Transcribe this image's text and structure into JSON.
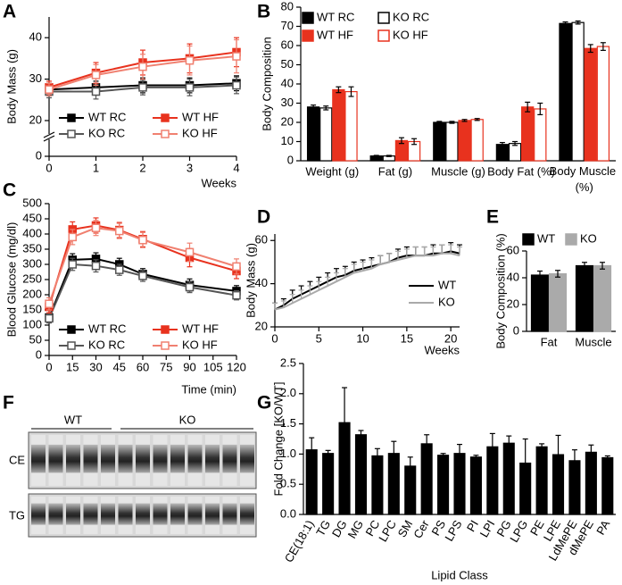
{
  "chart_data": [
    {
      "type": "line",
      "panel": "A",
      "ylabel": "Body Mass (g)",
      "xlabel": "Weeks",
      "x": [
        0,
        1,
        2,
        3,
        4
      ],
      "xlim": [
        0,
        4
      ],
      "xticks": [
        0,
        1,
        2,
        3,
        4
      ],
      "ylim": [
        0,
        45
      ],
      "yticks": [
        0,
        20,
        30,
        40
      ],
      "y_break": [
        0,
        20
      ],
      "series": [
        {
          "name": "WT RC",
          "color": "#000000",
          "marker": "filled",
          "values": [
            27.5,
            28,
            28.5,
            28.5,
            29
          ],
          "errors": [
            1.5,
            1.5,
            1.8,
            1.8,
            1.8
          ]
        },
        {
          "name": "KO RC",
          "color": "#555555",
          "marker": "open",
          "values": [
            27,
            27,
            28,
            28,
            28.5
          ],
          "errors": [
            1.5,
            1.8,
            1.8,
            2,
            2
          ]
        },
        {
          "name": "WT HF",
          "color": "#e8321e",
          "marker": "filled",
          "values": [
            28,
            31.5,
            34,
            35,
            36.5
          ],
          "errors": [
            1.5,
            2.5,
            3,
            3.5,
            3.5
          ]
        },
        {
          "name": "KO HF",
          "color": "#f08070",
          "marker": "open",
          "values": [
            27.5,
            31,
            33,
            34.5,
            35.5
          ],
          "errors": [
            1.5,
            2.5,
            3,
            3.5,
            4
          ]
        }
      ]
    },
    {
      "type": "bar",
      "panel": "B",
      "ylabel": "Body Composition",
      "categories": [
        "Weight (g)",
        "Fat (g)",
        "Muscle (g)",
        "Body Fat (%)",
        "Body Muscle (%)"
      ],
      "ylim": [
        0,
        80
      ],
      "yticks": [
        0,
        10,
        20,
        30,
        40,
        50,
        60,
        70,
        80
      ],
      "series": [
        {
          "name": "WT RC",
          "color": "#000000",
          "marker": "filled",
          "values": [
            28,
            2.5,
            20,
            8.5,
            71.5
          ],
          "errors": [
            1,
            0.3,
            0.5,
            1,
            0.8
          ]
        },
        {
          "name": "KO RC",
          "color": "#000000",
          "marker": "open",
          "values": [
            27.5,
            2.5,
            20,
            9,
            72
          ],
          "errors": [
            1,
            0.3,
            0.5,
            1,
            0.8
          ]
        },
        {
          "name": "WT HF",
          "color": "#e8321e",
          "marker": "filled",
          "values": [
            37,
            10.5,
            21,
            28,
            58.5
          ],
          "errors": [
            1.5,
            1.5,
            0.5,
            2.5,
            2
          ]
        },
        {
          "name": "KO HF",
          "color": "#e8321e",
          "marker": "open",
          "values": [
            36,
            10,
            21.5,
            27,
            59.5
          ],
          "errors": [
            2.5,
            1.5,
            0.5,
            3,
            2
          ]
        }
      ]
    },
    {
      "type": "line",
      "panel": "C",
      "ylabel": "Blood Glucose (mg/dl)",
      "xlabel": "Time (min)",
      "x": [
        0,
        15,
        30,
        45,
        60,
        90,
        120
      ],
      "xlim": [
        0,
        120
      ],
      "xticks": [
        0,
        15,
        30,
        45,
        60,
        75,
        90,
        105,
        120
      ],
      "ylim": [
        0,
        500
      ],
      "yticks": [
        0,
        50,
        100,
        150,
        200,
        250,
        300,
        350,
        400,
        450,
        500
      ],
      "series": [
        {
          "name": "WT RC",
          "color": "#000000",
          "marker": "filled",
          "values": [
            125,
            315,
            318,
            300,
            268,
            232,
            212
          ],
          "errors": [
            15,
            20,
            20,
            20,
            18,
            20,
            18
          ]
        },
        {
          "name": "KO RC",
          "color": "#555555",
          "marker": "open",
          "values": [
            122,
            300,
            295,
            282,
            262,
            225,
            198
          ],
          "errors": [
            15,
            20,
            20,
            18,
            18,
            18,
            15
          ]
        },
        {
          "name": "WT HF",
          "color": "#e8321e",
          "marker": "filled",
          "values": [
            160,
            415,
            428,
            413,
            383,
            322,
            278
          ],
          "errors": [
            20,
            25,
            25,
            25,
            25,
            30,
            25
          ]
        },
        {
          "name": "KO HF",
          "color": "#f08070",
          "marker": "open",
          "values": [
            170,
            390,
            420,
            410,
            380,
            340,
            293
          ],
          "errors": [
            20,
            25,
            25,
            25,
            25,
            30,
            25
          ]
        }
      ]
    },
    {
      "type": "line",
      "panel": "D",
      "ylabel": "Body Mass (g)",
      "xlabel": "Weeks",
      "x": [
        0,
        1,
        2,
        3,
        4,
        5,
        6,
        7,
        8,
        9,
        10,
        11,
        12,
        13,
        14,
        15,
        16,
        17,
        18,
        19,
        20,
        21
      ],
      "xlim": [
        0,
        21
      ],
      "xticks": [
        0,
        5,
        10,
        15,
        20
      ],
      "ylim": [
        20,
        63
      ],
      "yticks": [
        20,
        40,
        60
      ],
      "error_direction": "up",
      "series": [
        {
          "name": "WT",
          "color": "#000000",
          "values": [
            28,
            30,
            33,
            35,
            37,
            39,
            41,
            43,
            44,
            46,
            47,
            48,
            49,
            50,
            52,
            53,
            53,
            53,
            54,
            54,
            55,
            54
          ],
          "errors": [
            3,
            3,
            4,
            4,
            4,
            4,
            4,
            4,
            4,
            4,
            4,
            4,
            4,
            4,
            4,
            4,
            4,
            4,
            4,
            4,
            4,
            4
          ]
        },
        {
          "name": "KO",
          "color": "#aaaaaa",
          "values": [
            28,
            29,
            31,
            33,
            35,
            37,
            39,
            41,
            43,
            45,
            46,
            47,
            49,
            50,
            51,
            52,
            53,
            53,
            53,
            54,
            54,
            53
          ],
          "errors": [
            3,
            3,
            4,
            4,
            4,
            4,
            4,
            4,
            4,
            4,
            4,
            4,
            4,
            4,
            4,
            4,
            4,
            4,
            4,
            4,
            4,
            4
          ]
        }
      ]
    },
    {
      "type": "bar",
      "panel": "E",
      "ylabel": "Body Composition (%)",
      "categories": [
        "Fat",
        "Muscle"
      ],
      "ylim": [
        0,
        60
      ],
      "yticks": [
        0,
        20,
        40,
        60
      ],
      "series": [
        {
          "name": "WT",
          "color": "#000000",
          "marker": "filled",
          "values": [
            42,
            49
          ],
          "errors": [
            3,
            2.5
          ]
        },
        {
          "name": "KO",
          "color": "#aaaaaa",
          "marker": "filled",
          "values": [
            43,
            49
          ],
          "errors": [
            2.5,
            2.5
          ]
        }
      ]
    },
    {
      "type": "bar",
      "panel": "G",
      "ylabel": "Fold Change [KO/WT]",
      "xlabel": "Lipid Class",
      "categories": [
        "CE(18:1)",
        "TG",
        "DG",
        "MG",
        "PC",
        "LPC",
        "SM",
        "Cer",
        "PS",
        "LPS",
        "PI",
        "LPI",
        "PG",
        "LPG",
        "PE",
        "LPE",
        "LdMePE",
        "dMePE",
        "PA"
      ],
      "ylim": [
        0,
        2.5
      ],
      "yticks": [
        {
          "value": 0,
          "label": "0.0"
        },
        0.5,
        {
          "value": 1,
          "label": "1.0"
        },
        1.5,
        {
          "value": 2,
          "label": "2.0"
        },
        2.5
      ],
      "color": "#000000",
      "values": [
        1.07,
        1.01,
        1.52,
        1.32,
        0.97,
        1.01,
        0.8,
        1.17,
        0.98,
        1.01,
        0.95,
        1.12,
        1.18,
        0.85,
        1.12,
        0.99,
        0.89,
        1.03,
        0.94
      ],
      "errors": [
        0.2,
        0.05,
        0.58,
        0.07,
        0.12,
        0.2,
        0.15,
        0.15,
        0.03,
        0.15,
        0.03,
        0.22,
        0.12,
        0.4,
        0.05,
        0.32,
        0.18,
        0.12,
        0.03
      ]
    }
  ],
  "gel": {
    "panel": "F",
    "groups": [
      "WT",
      "KO"
    ],
    "rows": [
      "CE",
      "TG"
    ]
  }
}
